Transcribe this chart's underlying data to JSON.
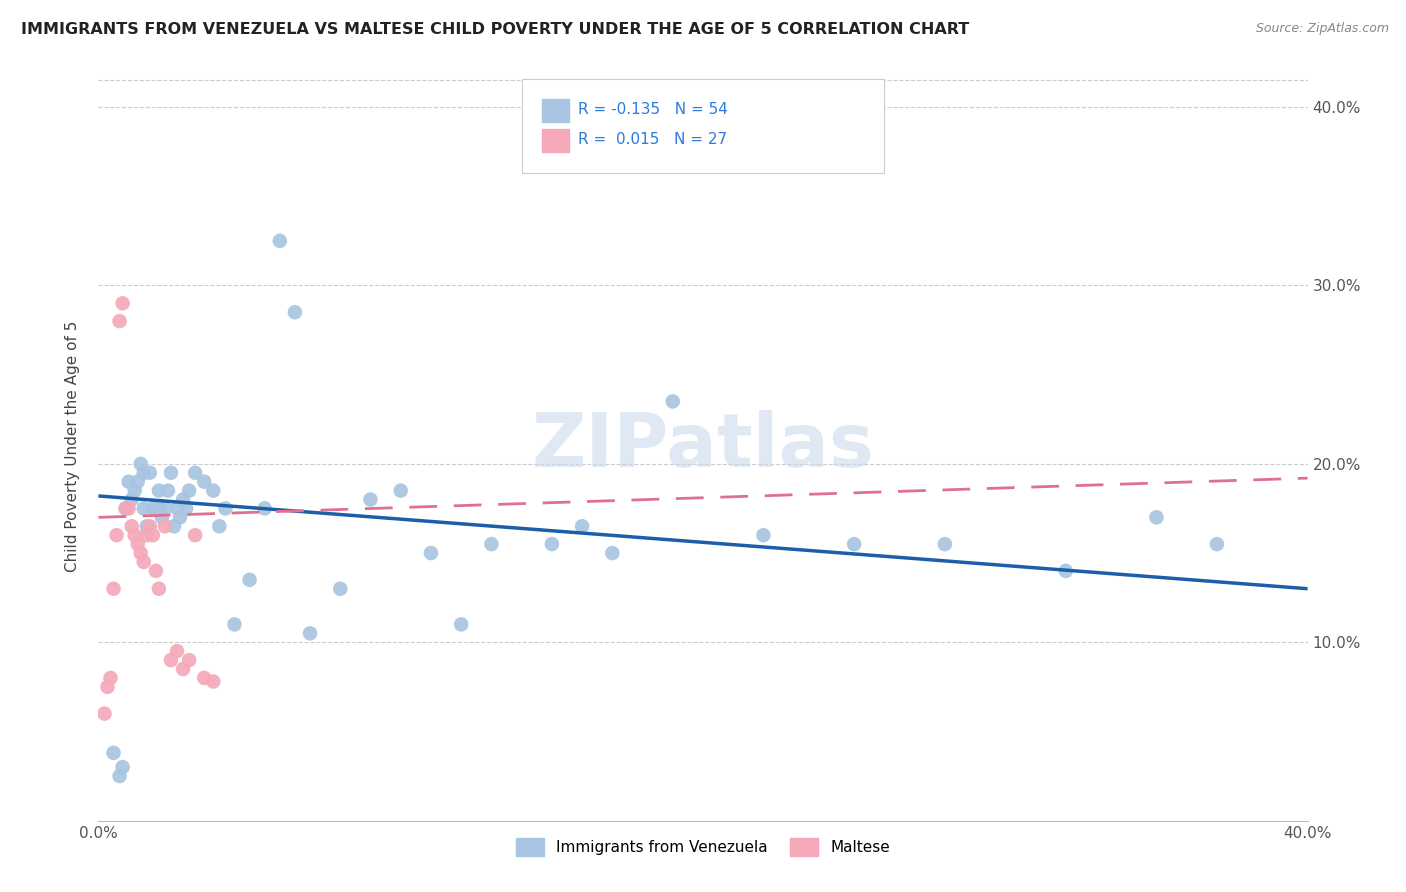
{
  "title": "IMMIGRANTS FROM VENEZUELA VS MALTESE CHILD POVERTY UNDER THE AGE OF 5 CORRELATION CHART",
  "source": "Source: ZipAtlas.com",
  "ylabel": "Child Poverty Under the Age of 5",
  "xlim": [
    0,
    0.4
  ],
  "ylim": [
    0,
    0.42
  ],
  "ytick_vals": [
    0.1,
    0.2,
    0.3,
    0.4
  ],
  "ytick_labels": [
    "10.0%",
    "20.0%",
    "30.0%",
    "40.0%"
  ],
  "xtick_vals": [
    0.0,
    0.4
  ],
  "xtick_labels": [
    "0.0%",
    "40.0%"
  ],
  "series1_label": "Immigrants from Venezuela",
  "series1_R": "-0.135",
  "series1_N": "54",
  "series1_color": "#a8c4e0",
  "series1_line_color": "#1a5fa8",
  "series2_label": "Maltese",
  "series2_R": "0.015",
  "series2_N": "27",
  "series2_color": "#f4a8b8",
  "series2_line_color": "#e07090",
  "watermark": "ZIPatlas",
  "blue_scatter_x": [
    0.005,
    0.007,
    0.008,
    0.009,
    0.01,
    0.011,
    0.012,
    0.013,
    0.014,
    0.015,
    0.015,
    0.016,
    0.017,
    0.018,
    0.019,
    0.02,
    0.02,
    0.021,
    0.022,
    0.023,
    0.024,
    0.025,
    0.026,
    0.027,
    0.028,
    0.029,
    0.03,
    0.032,
    0.035,
    0.038,
    0.04,
    0.042,
    0.045,
    0.05,
    0.055,
    0.06,
    0.065,
    0.07,
    0.08,
    0.09,
    0.1,
    0.11,
    0.12,
    0.13,
    0.15,
    0.16,
    0.17,
    0.19,
    0.22,
    0.25,
    0.28,
    0.32,
    0.35,
    0.37
  ],
  "blue_scatter_y": [
    0.038,
    0.025,
    0.03,
    0.175,
    0.19,
    0.18,
    0.185,
    0.19,
    0.2,
    0.195,
    0.175,
    0.165,
    0.195,
    0.175,
    0.175,
    0.185,
    0.175,
    0.17,
    0.175,
    0.185,
    0.195,
    0.165,
    0.175,
    0.17,
    0.18,
    0.175,
    0.185,
    0.195,
    0.19,
    0.185,
    0.165,
    0.175,
    0.11,
    0.135,
    0.175,
    0.325,
    0.285,
    0.105,
    0.13,
    0.18,
    0.185,
    0.15,
    0.11,
    0.155,
    0.155,
    0.165,
    0.15,
    0.235,
    0.16,
    0.155,
    0.155,
    0.14,
    0.17,
    0.155
  ],
  "pink_scatter_x": [
    0.002,
    0.003,
    0.004,
    0.005,
    0.006,
    0.007,
    0.008,
    0.009,
    0.01,
    0.011,
    0.012,
    0.013,
    0.014,
    0.015,
    0.016,
    0.017,
    0.018,
    0.019,
    0.02,
    0.022,
    0.024,
    0.026,
    0.028,
    0.03,
    0.032,
    0.035,
    0.038
  ],
  "pink_scatter_y": [
    0.06,
    0.075,
    0.08,
    0.13,
    0.16,
    0.28,
    0.29,
    0.175,
    0.175,
    0.165,
    0.16,
    0.155,
    0.15,
    0.145,
    0.16,
    0.165,
    0.16,
    0.14,
    0.13,
    0.165,
    0.09,
    0.095,
    0.085,
    0.09,
    0.16,
    0.08,
    0.078
  ],
  "blue_trend_start_y": 0.182,
  "blue_trend_end_y": 0.13,
  "pink_trend_start_y": 0.17,
  "pink_trend_end_y": 0.192
}
